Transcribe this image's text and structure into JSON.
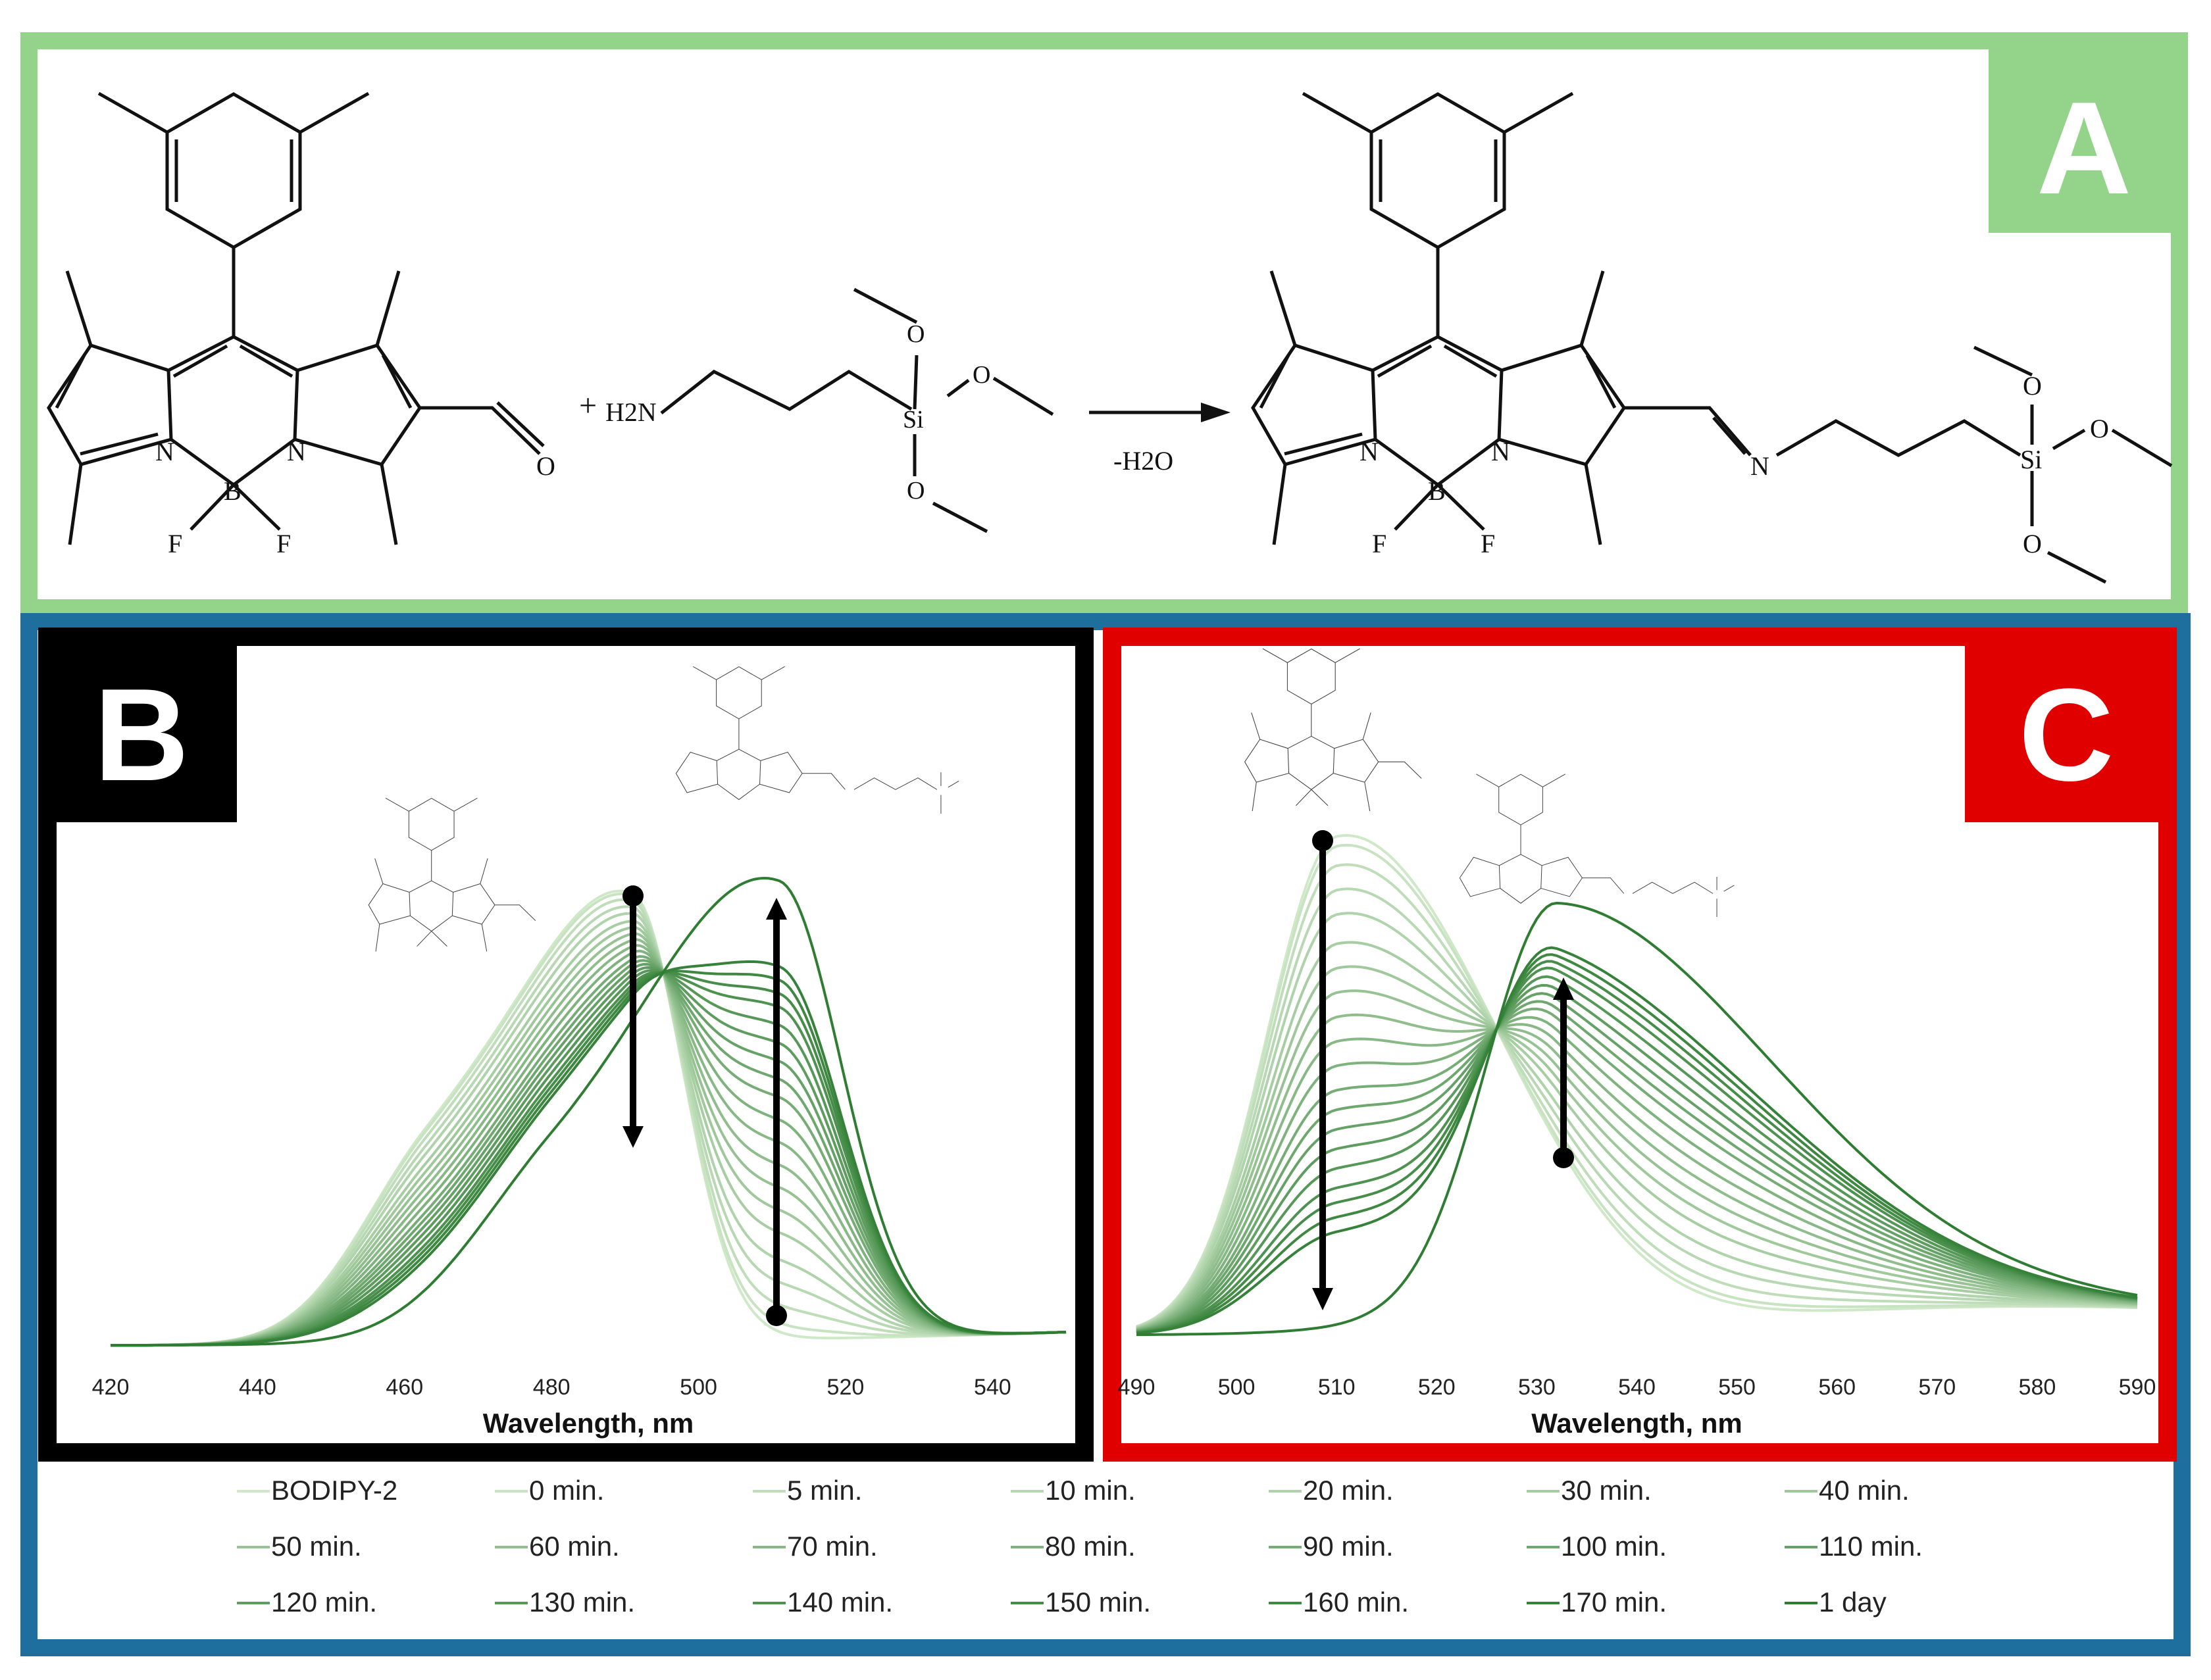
{
  "panels": {
    "a": {
      "letter": "A",
      "reagent": "H2N",
      "plus": "+",
      "condition": "-H2O"
    },
    "b": {
      "letter": "B"
    },
    "c": {
      "letter": "C"
    }
  },
  "colors": {
    "a_border": "#93d48a",
    "outer_border": "#1f6f9e",
    "b_frame": "#000000",
    "c_frame": "#e00000",
    "line_light": "#cfe8c8",
    "line_dark": "#2e7d32"
  },
  "chart_data": [
    {
      "type": "line",
      "panel": "B",
      "xlabel": "Wavelength, nm",
      "xlim": [
        420,
        550
      ],
      "xticks": [
        420,
        440,
        460,
        480,
        500,
        520,
        540
      ],
      "curve_model": "two-band spectra, short band fading and long band growing",
      "series": [
        {
          "name": "BODIPY-2",
          "band1": 1.0,
          "band2": 0.0
        },
        {
          "name": "0 min.",
          "band1": 0.98,
          "band2": 0.02
        },
        {
          "name": "5 min.",
          "band1": 0.94,
          "band2": 0.06
        },
        {
          "name": "10 min.",
          "band1": 0.89,
          "band2": 0.11
        },
        {
          "name": "20 min.",
          "band1": 0.84,
          "band2": 0.16
        },
        {
          "name": "30 min.",
          "band1": 0.78,
          "band2": 0.22
        },
        {
          "name": "40 min.",
          "band1": 0.73,
          "band2": 0.27
        },
        {
          "name": "50 min.",
          "band1": 0.68,
          "band2": 0.32
        },
        {
          "name": "60 min.",
          "band1": 0.63,
          "band2": 0.37
        },
        {
          "name": "70 min.",
          "band1": 0.58,
          "band2": 0.42
        },
        {
          "name": "80 min.",
          "band1": 0.53,
          "band2": 0.47
        },
        {
          "name": "90 min.",
          "band1": 0.48,
          "band2": 0.52
        },
        {
          "name": "100 min.",
          "band1": 0.44,
          "band2": 0.56
        },
        {
          "name": "110 min.",
          "band1": 0.4,
          "band2": 0.6
        },
        {
          "name": "120 min.",
          "band1": 0.36,
          "band2": 0.64
        },
        {
          "name": "130 min.",
          "band1": 0.32,
          "band2": 0.68
        },
        {
          "name": "140 min.",
          "band1": 0.28,
          "band2": 0.72
        },
        {
          "name": "150 min.",
          "band1": 0.25,
          "band2": 0.75
        },
        {
          "name": "160 min.",
          "band1": 0.22,
          "band2": 0.78
        },
        {
          "name": "170 min.",
          "band1": 0.19,
          "band2": 0.81
        },
        {
          "name": "1 day",
          "band1": 0.0,
          "band2": 1.0
        }
      ]
    },
    {
      "type": "line",
      "panel": "C",
      "xlabel": "Wavelength, nm",
      "xlim": [
        490,
        590
      ],
      "xticks": [
        490,
        500,
        510,
        520,
        530,
        540,
        550,
        560,
        570,
        580,
        590
      ],
      "curve_model": "two-band spectra, short band fading and long band growing",
      "series": [
        {
          "name": "BODIPY-2",
          "band1": 1.0,
          "band2": 0.0
        },
        {
          "name": "0 min.",
          "band1": 0.98,
          "band2": 0.02
        },
        {
          "name": "5 min.",
          "band1": 0.94,
          "band2": 0.06
        },
        {
          "name": "10 min.",
          "band1": 0.89,
          "band2": 0.11
        },
        {
          "name": "20 min.",
          "band1": 0.84,
          "band2": 0.16
        },
        {
          "name": "30 min.",
          "band1": 0.78,
          "band2": 0.22
        },
        {
          "name": "40 min.",
          "band1": 0.73,
          "band2": 0.27
        },
        {
          "name": "50 min.",
          "band1": 0.68,
          "band2": 0.32
        },
        {
          "name": "60 min.",
          "band1": 0.63,
          "band2": 0.37
        },
        {
          "name": "70 min.",
          "band1": 0.58,
          "band2": 0.42
        },
        {
          "name": "80 min.",
          "band1": 0.53,
          "band2": 0.47
        },
        {
          "name": "90 min.",
          "band1": 0.48,
          "band2": 0.52
        },
        {
          "name": "100 min.",
          "band1": 0.44,
          "band2": 0.56
        },
        {
          "name": "110 min.",
          "band1": 0.4,
          "band2": 0.6
        },
        {
          "name": "120 min.",
          "band1": 0.36,
          "band2": 0.64
        },
        {
          "name": "130 min.",
          "band1": 0.32,
          "band2": 0.68
        },
        {
          "name": "140 min.",
          "band1": 0.28,
          "band2": 0.72
        },
        {
          "name": "150 min.",
          "band1": 0.25,
          "band2": 0.75
        },
        {
          "name": "160 min.",
          "band1": 0.22,
          "band2": 0.78
        },
        {
          "name": "170 min.",
          "band1": 0.19,
          "band2": 0.81
        },
        {
          "name": "1 day",
          "band1": 0.0,
          "band2": 1.0
        }
      ]
    }
  ]
}
